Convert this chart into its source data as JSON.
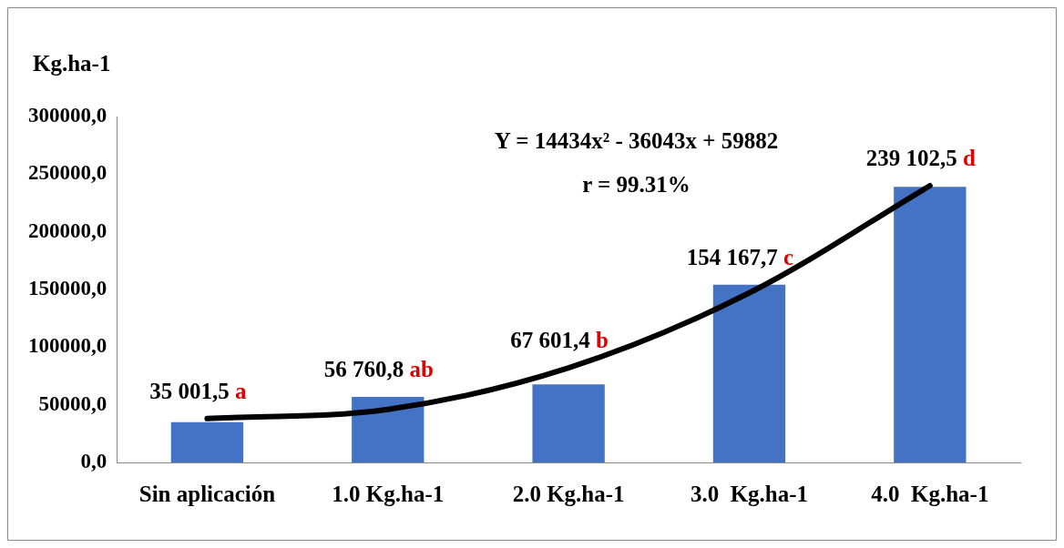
{
  "chart_data": {
    "type": "bar",
    "ylabel": "Kg.ha-1",
    "categories": [
      "Sin aplicación",
      "1.0 Kg.ha-1",
      "2.0 Kg.ha-1",
      "3.0  Kg.ha-1",
      "4.0  Kg.ha-1"
    ],
    "series": [
      {
        "color": "#4472c4",
        "values": [
          35001.5,
          56760.8,
          67601.4,
          154167.7,
          239102.5
        ],
        "value_labels": [
          "35 001,5 a",
          "56 760,8 ab",
          "67 601,4 b",
          "154 167,7 c",
          "239 102,5 d"
        ]
      },
      {
        "type": "line",
        "color": "#000000",
        "values": [
          38000,
          46000,
          82000,
          147000,
          240000
        ]
      }
    ],
    "ylim": [
      0,
      300000
    ],
    "yticks": [
      {
        "value": 0,
        "label": "0,0"
      },
      {
        "value": 50000,
        "label": "50000,0"
      },
      {
        "value": 100000,
        "label": "100000,0"
      },
      {
        "value": 150000,
        "label": "150000,0"
      },
      {
        "value": 200000,
        "label": "200000,0"
      },
      {
        "value": 250000,
        "label": "250000,0"
      },
      {
        "value": 300000,
        "label": "300000,0"
      }
    ],
    "annotations": [
      "Y = 14434x² - 36043x + 59882",
      "r = 99.31%"
    ],
    "grid": false,
    "legend": false,
    "marker": "none"
  }
}
